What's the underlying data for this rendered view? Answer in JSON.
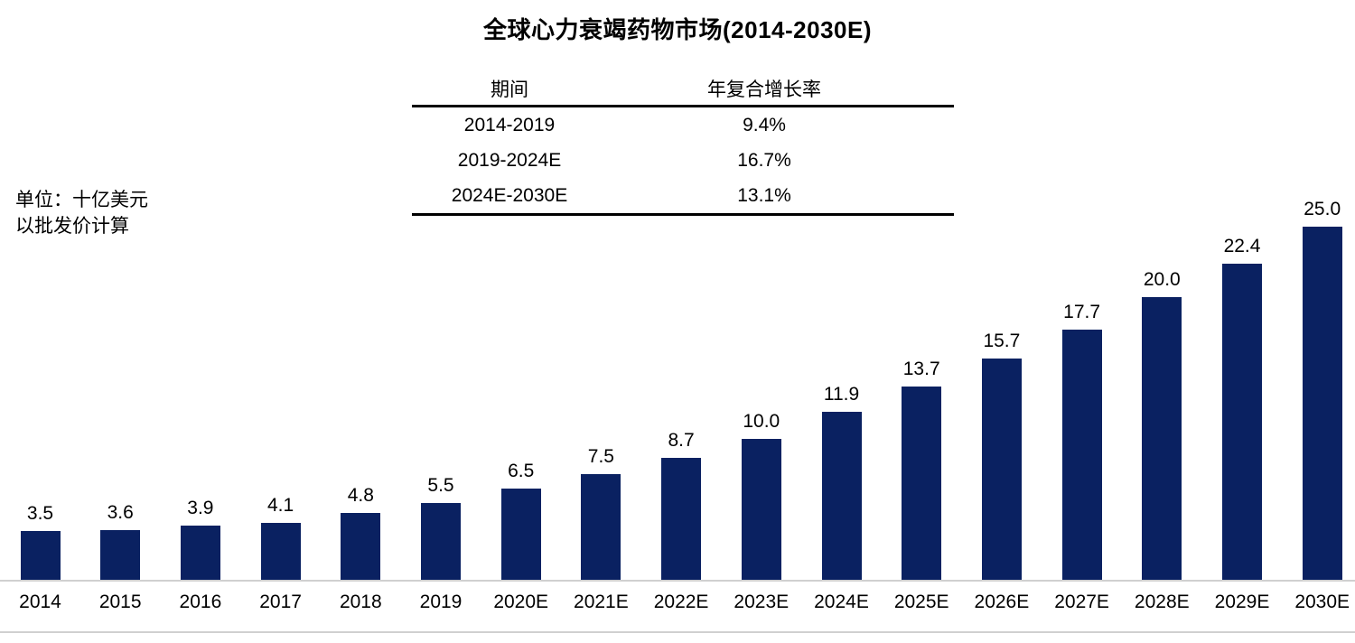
{
  "title": "全球心力衰竭药物市场(2014-2030E)",
  "unit_note": {
    "line1": "单位：十亿美元",
    "line2": "以批发价计算"
  },
  "cagr_table": {
    "headers": {
      "period": "期间",
      "cagr": "年复合增长率"
    },
    "rows": [
      {
        "period": "2014-2019",
        "cagr": "9.4%"
      },
      {
        "period": "2019-2024E",
        "cagr": "16.7%"
      },
      {
        "period": "2024E-2030E",
        "cagr": "13.1%"
      }
    ]
  },
  "chart_data": {
    "type": "bar",
    "title": "全球心力衰竭药物市场(2014-2030E)",
    "unit_label": "单位：十亿美元 以批发价计算",
    "categories": [
      "2014",
      "2015",
      "2016",
      "2017",
      "2018",
      "2019",
      "2020E",
      "2021E",
      "2022E",
      "2023E",
      "2024E",
      "2025E",
      "2026E",
      "2027E",
      "2028E",
      "2029E",
      "2030E"
    ],
    "values": [
      3.5,
      3.6,
      3.9,
      4.1,
      4.8,
      5.5,
      6.5,
      7.5,
      8.7,
      10.0,
      11.9,
      13.7,
      15.7,
      17.7,
      20.0,
      22.4,
      25.0
    ],
    "value_labels": [
      "3.5",
      "3.6",
      "3.9",
      "4.1",
      "4.8",
      "5.5",
      "6.5",
      "7.5",
      "8.7",
      "10.0",
      "11.9",
      "13.7",
      "15.7",
      "17.7",
      "20.0",
      "22.4",
      "25.0"
    ],
    "bar_color": "#0a2161",
    "grid": false,
    "legend": null,
    "y_axis_visible": false
  },
  "colors": {
    "bar": "#0a2161",
    "axis_line": "#d0d0d0",
    "table_border": "#000000",
    "text": "#000000"
  }
}
